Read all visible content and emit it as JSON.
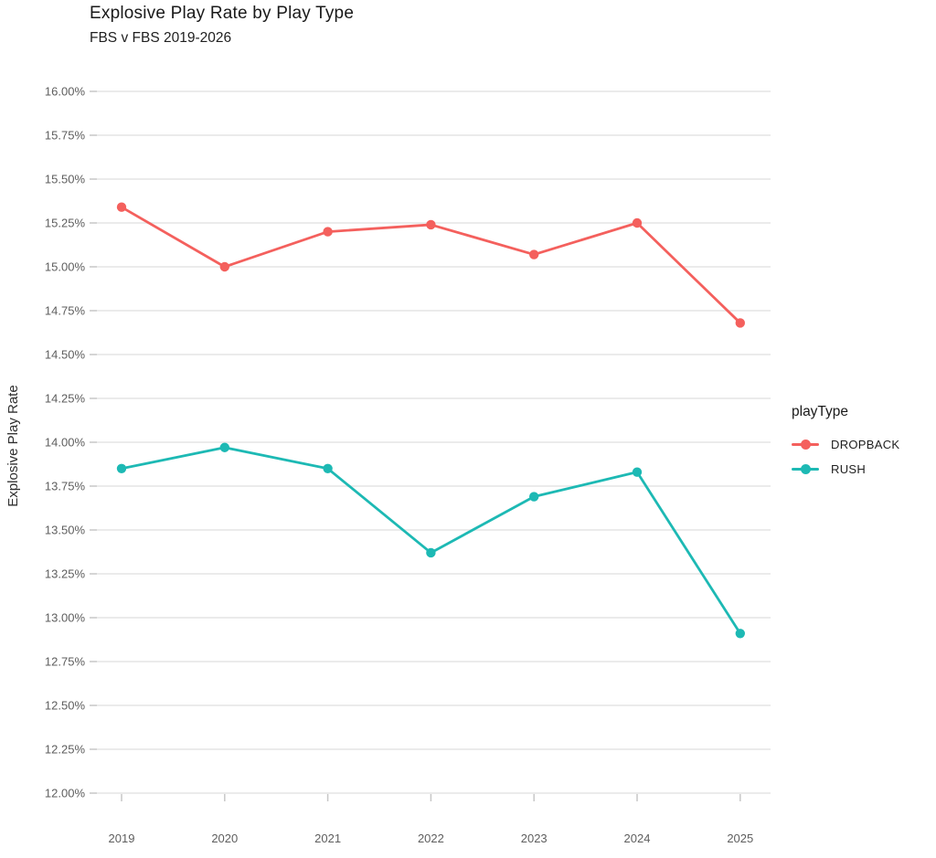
{
  "header": {
    "title": "Explosive Play Rate by Play Type",
    "subtitle": "FBS v FBS 2019-2026"
  },
  "axes": {
    "y_title": "Explosive Play Rate"
  },
  "legend": {
    "title": "playType",
    "position": "right"
  },
  "chart_data": {
    "type": "line",
    "title": "Explosive Play Rate by Play Type",
    "subtitle": "FBS v FBS 2019-2026",
    "xlabel": "",
    "ylabel": "Explosive Play Rate",
    "categories": [
      "2019",
      "2020",
      "2021",
      "2022",
      "2023",
      "2024",
      "2025"
    ],
    "series": [
      {
        "name": "DROPBACK",
        "color": "#f4605d",
        "values": [
          15.34,
          15.0,
          15.2,
          15.24,
          15.07,
          15.25,
          14.68
        ]
      },
      {
        "name": "RUSH",
        "color": "#1db9b4",
        "values": [
          13.85,
          13.97,
          13.85,
          13.37,
          13.69,
          13.83,
          12.91
        ]
      }
    ],
    "ylim": [
      12.0,
      16.0
    ],
    "ytick_step": 0.25,
    "ytick_labels": [
      "12.00%",
      "12.25%",
      "12.50%",
      "12.75%",
      "13.00%",
      "13.25%",
      "13.50%",
      "13.75%",
      "14.00%",
      "14.25%",
      "14.50%",
      "14.75%",
      "15.00%",
      "15.25%",
      "15.50%",
      "15.75%",
      "16.00%"
    ],
    "grid": "horizontal",
    "legend_position": "right",
    "marker": "circle",
    "colors": {
      "gridline": "#ebebeb",
      "tick": "#c7c7c7",
      "tick_label": "#5e5e5e",
      "background": "#ffffff"
    }
  }
}
